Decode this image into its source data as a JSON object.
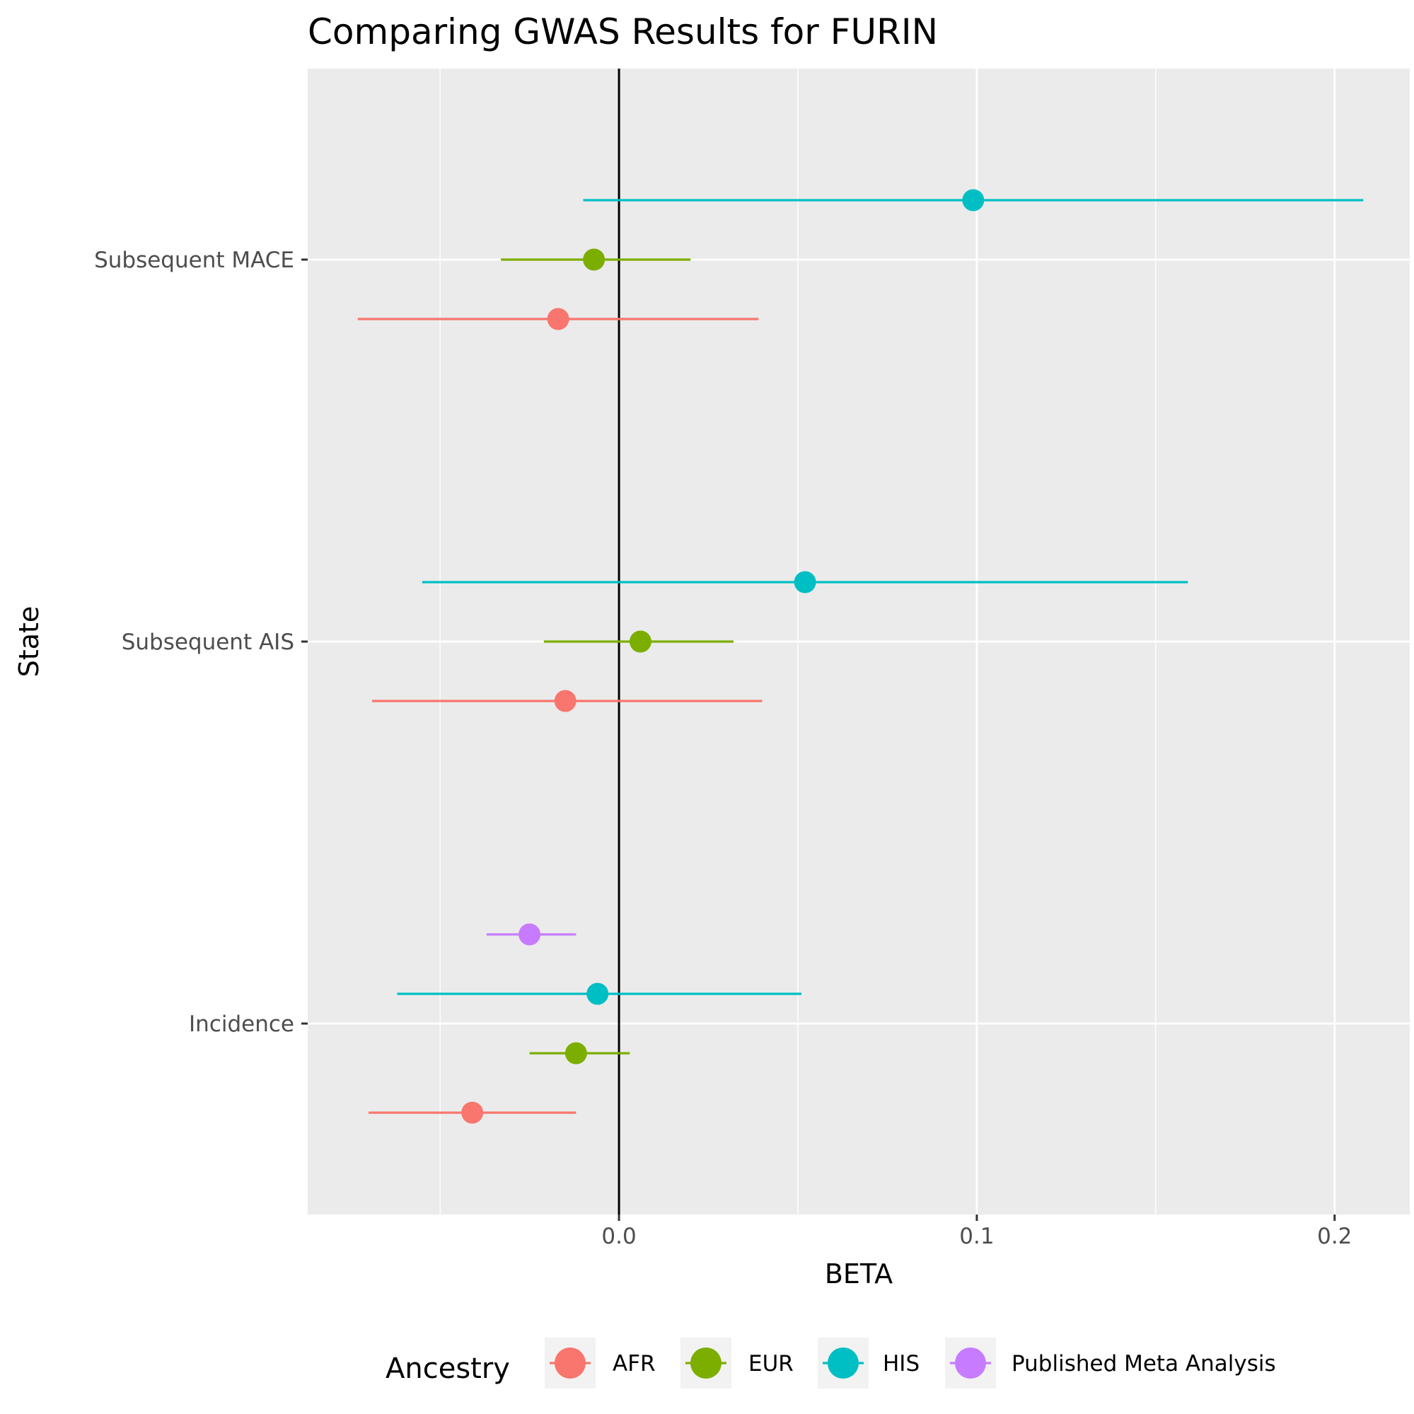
{
  "chart_data": {
    "type": "scatter",
    "subtype": "forest-plot",
    "title": "Comparing GWAS Results for FURIN",
    "xlabel": "BETA",
    "ylabel": "State",
    "xlim": [
      -0.087,
      0.221
    ],
    "x_ticks": [
      0.0,
      0.1,
      0.2
    ],
    "x_tick_labels": [
      "0.0",
      "0.1",
      "0.2"
    ],
    "categories": [
      "Incidence",
      "Subsequent AIS",
      "Subsequent MACE"
    ],
    "reference_line_x": 0.0,
    "grid": true,
    "legend": {
      "title": "Ancestry",
      "position": "bottom"
    },
    "series": [
      {
        "name": "AFR",
        "color": "#F8766D",
        "points": [
          {
            "category": "Subsequent MACE",
            "beta": -0.017,
            "lower": -0.073,
            "upper": 0.039
          },
          {
            "category": "Subsequent AIS",
            "beta": -0.015,
            "lower": -0.069,
            "upper": 0.04
          },
          {
            "category": "Incidence",
            "beta": -0.041,
            "lower": -0.07,
            "upper": -0.012
          }
        ]
      },
      {
        "name": "EUR",
        "color": "#7CAE00",
        "points": [
          {
            "category": "Subsequent MACE",
            "beta": -0.007,
            "lower": -0.033,
            "upper": 0.02
          },
          {
            "category": "Subsequent AIS",
            "beta": 0.006,
            "lower": -0.021,
            "upper": 0.032
          },
          {
            "category": "Incidence",
            "beta": -0.012,
            "lower": -0.025,
            "upper": 0.003
          }
        ]
      },
      {
        "name": "HIS",
        "color": "#00BFC4",
        "points": [
          {
            "category": "Subsequent MACE",
            "beta": 0.099,
            "lower": -0.01,
            "upper": 0.208
          },
          {
            "category": "Subsequent AIS",
            "beta": 0.052,
            "lower": -0.055,
            "upper": 0.159
          },
          {
            "category": "Incidence",
            "beta": -0.006,
            "lower": -0.062,
            "upper": 0.051
          }
        ]
      },
      {
        "name": "Published Meta Analysis",
        "color": "#C77CFF",
        "points": [
          {
            "category": "Incidence",
            "beta": -0.025,
            "lower": -0.037,
            "upper": -0.012
          }
        ]
      }
    ]
  }
}
